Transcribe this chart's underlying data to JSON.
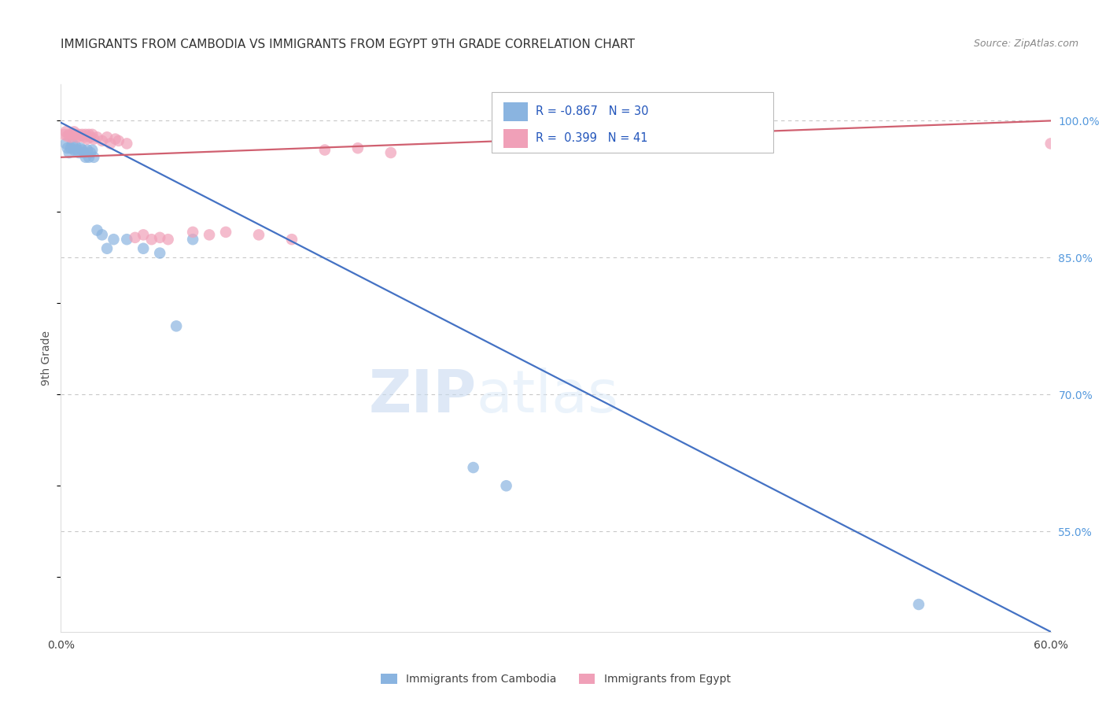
{
  "title": "IMMIGRANTS FROM CAMBODIA VS IMMIGRANTS FROM EGYPT 9TH GRADE CORRELATION CHART",
  "source": "Source: ZipAtlas.com",
  "ylabel": "9th Grade",
  "xlim": [
    0.0,
    0.6
  ],
  "ylim": [
    0.44,
    1.04
  ],
  "xticks": [
    0.0,
    0.1,
    0.2,
    0.3,
    0.4,
    0.5,
    0.6
  ],
  "xtick_labels": [
    "0.0%",
    "",
    "",
    "",
    "",
    "",
    "60.0%"
  ],
  "yticks_right": [
    0.55,
    0.7,
    0.85,
    1.0
  ],
  "ytick_labels_right": [
    "55.0%",
    "70.0%",
    "85.0%",
    "100.0%"
  ],
  "grid_color": "#c8c8c8",
  "background_color": "#ffffff",
  "cambodia_color": "#8ab4e0",
  "egypt_color": "#f0a0b8",
  "cambodia_line_color": "#4472c4",
  "egypt_line_color": "#d06070",
  "legend_R_cambodia": "-0.867",
  "legend_N_cambodia": "30",
  "legend_R_egypt": "0.399",
  "legend_N_egypt": "41",
  "legend_label_cambodia": "Immigrants from Cambodia",
  "legend_label_egypt": "Immigrants from Egypt",
  "watermark_zip": "ZIP",
  "watermark_atlas": "atlas",
  "title_fontsize": 11,
  "source_fontsize": 9,
  "cambodia_scatter_x": [
    0.003,
    0.004,
    0.005,
    0.006,
    0.007,
    0.008,
    0.009,
    0.01,
    0.011,
    0.012,
    0.013,
    0.014,
    0.015,
    0.016,
    0.017,
    0.018,
    0.019,
    0.02,
    0.022,
    0.025,
    0.028,
    0.032,
    0.04,
    0.05,
    0.06,
    0.07,
    0.08,
    0.25,
    0.27,
    0.52
  ],
  "cambodia_scatter_y": [
    0.975,
    0.97,
    0.965,
    0.97,
    0.975,
    0.968,
    0.972,
    0.968,
    0.965,
    0.97,
    0.968,
    0.965,
    0.96,
    0.968,
    0.96,
    0.965,
    0.968,
    0.96,
    0.88,
    0.875,
    0.86,
    0.87,
    0.87,
    0.86,
    0.855,
    0.775,
    0.87,
    0.62,
    0.6,
    0.47
  ],
  "egypt_scatter_x": [
    0.002,
    0.003,
    0.004,
    0.005,
    0.006,
    0.007,
    0.008,
    0.009,
    0.01,
    0.011,
    0.012,
    0.013,
    0.014,
    0.015,
    0.016,
    0.017,
    0.018,
    0.019,
    0.02,
    0.022,
    0.025,
    0.028,
    0.03,
    0.033,
    0.035,
    0.04,
    0.045,
    0.05,
    0.055,
    0.06,
    0.065,
    0.08,
    0.09,
    0.1,
    0.12,
    0.14,
    0.16,
    0.18,
    0.2,
    0.35,
    0.6
  ],
  "egypt_scatter_y": [
    0.985,
    0.988,
    0.983,
    0.985,
    0.982,
    0.985,
    0.988,
    0.985,
    0.982,
    0.985,
    0.983,
    0.985,
    0.982,
    0.985,
    0.98,
    0.985,
    0.982,
    0.985,
    0.98,
    0.982,
    0.978,
    0.982,
    0.975,
    0.98,
    0.978,
    0.975,
    0.872,
    0.875,
    0.87,
    0.872,
    0.87,
    0.878,
    0.875,
    0.878,
    0.875,
    0.87,
    0.968,
    0.97,
    0.965,
    0.978,
    0.975
  ],
  "cambodia_line_x": [
    0.0,
    0.6
  ],
  "cambodia_line_y": [
    0.998,
    0.44
  ],
  "egypt_line_x": [
    0.0,
    0.6
  ],
  "egypt_line_y": [
    0.96,
    1.0
  ]
}
